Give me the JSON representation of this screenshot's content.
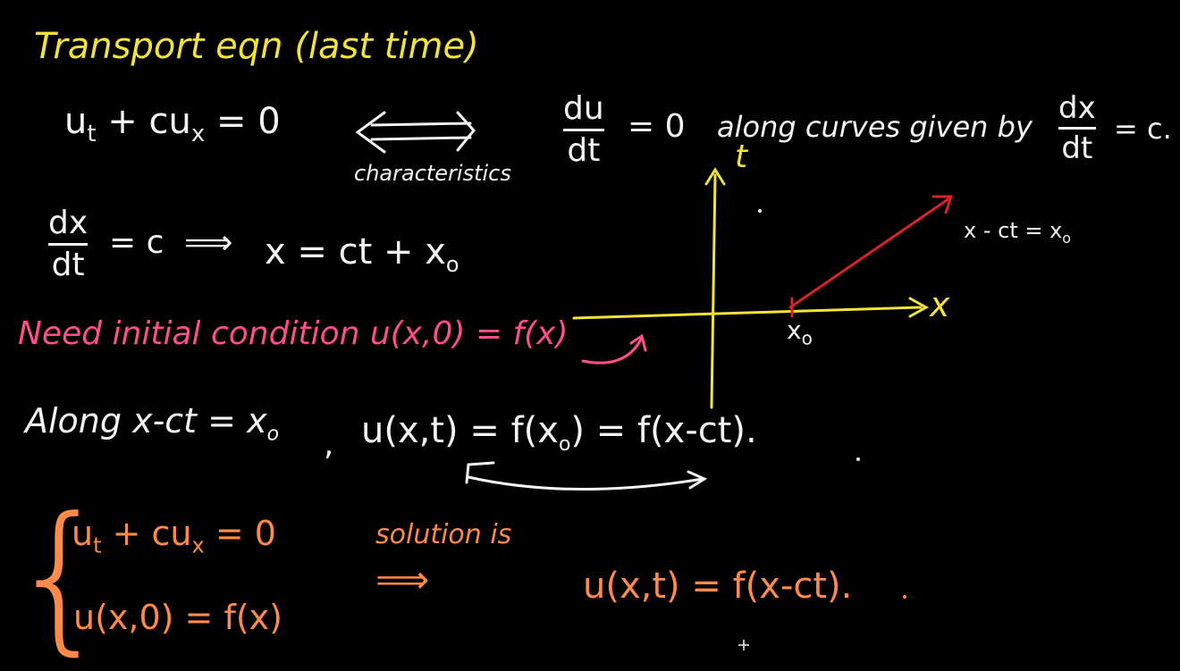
{
  "colors": {
    "background": "#000000",
    "yellow": "#f2e23a",
    "white": "#f4f4f4",
    "pink": "#ff4f8a",
    "orange": "#ff8a4a",
    "red": "#d8232a"
  },
  "title": "Transport eqn (last time)",
  "pde": {
    "equation": "u_t + cu_x = 0",
    "equation_ut": "u",
    "equation_t": "t",
    "equation_rest": "+ cu",
    "equation_x": "x",
    "equation_eq0": "= 0",
    "arrow_label": "characteristics"
  },
  "ode": {
    "du": "du",
    "dt": "dt",
    "eq0": "= 0",
    "along_text": "along curves given by",
    "dx": "dx",
    "dt2": "dt",
    "eqc": "= c."
  },
  "characteristic_solve": {
    "dx": "dx",
    "dt": "dt",
    "eqc": "= c",
    "implies": "⟹",
    "result": "x = ct + x",
    "sub0": "o"
  },
  "initial_condition": "Need initial condition u(x,0) = f(x)",
  "graph": {
    "t_label": "t",
    "x_label": "x",
    "x0_label": "x",
    "x0_sub": "o",
    "line_label": "x - ct = x",
    "line_label_sub": "o"
  },
  "along": {
    "along_text": "Along x-ct = x",
    "along_sub": "o",
    "comma": ",",
    "solution": "u(x,t) = f(x",
    "solution_sub": "o",
    "solution_end": ") = f(x-ct)."
  },
  "summary": {
    "line1": "u",
    "line1_sub": "t",
    "line1_rest": "+ cu",
    "line1_sub2": "x",
    "line1_end": "= 0",
    "line2": "u(x,0) = f(x)",
    "solution_is": "solution is",
    "implies": "⟹",
    "result": "u(x,t) = f(x-ct)."
  }
}
